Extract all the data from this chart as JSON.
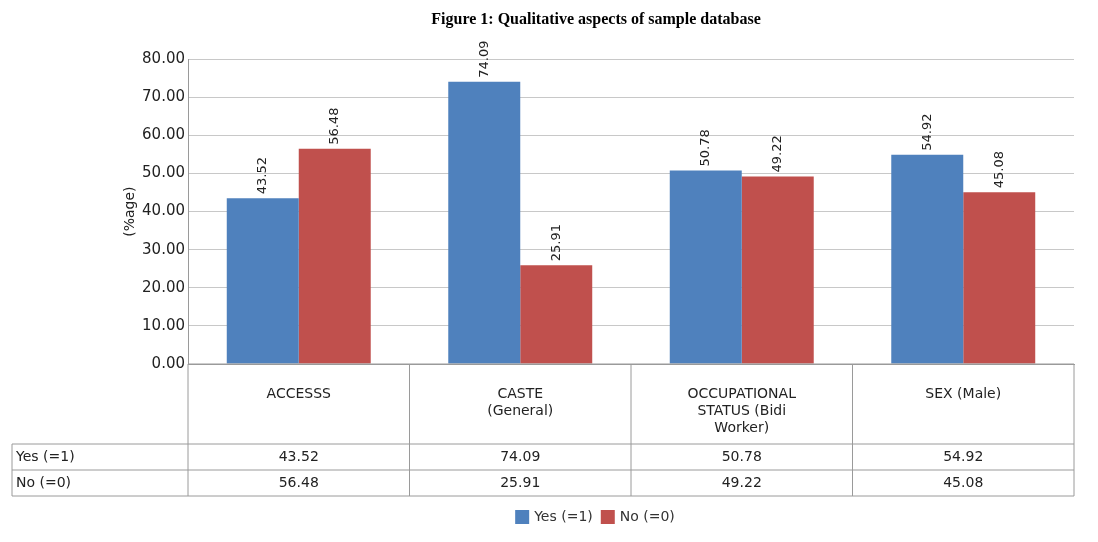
{
  "chart_data": {
    "type": "bar",
    "title": "Figure 1: Qualitative aspects of sample database",
    "ylabel": "(%age)",
    "categories": [
      "ACCESSS",
      "CASTE (General)",
      "OCCUPATIONAL STATUS (Bidi Worker)",
      "SEX (Male)"
    ],
    "series": [
      {
        "name": "Yes (=1)",
        "color": "#4f81bd",
        "values": [
          43.52,
          74.09,
          50.78,
          54.92
        ],
        "value_labels": [
          "43.52",
          "74.09",
          "50.78",
          "54.92"
        ]
      },
      {
        "name": "No (=0)",
        "color": "#c0504d",
        "values": [
          56.48,
          25.91,
          49.22,
          45.08
        ],
        "value_labels": [
          "56.48",
          "25.91",
          "49.22",
          "45.08"
        ]
      }
    ],
    "ylim": [
      0,
      80
    ],
    "yticks": [
      {
        "value": 0,
        "label": "0.00"
      },
      {
        "value": 10,
        "label": "10.00"
      },
      {
        "value": 20,
        "label": "20.00"
      },
      {
        "value": 30,
        "label": "30.00"
      },
      {
        "value": 40,
        "label": "40.00"
      },
      {
        "value": 50,
        "label": "50.00"
      },
      {
        "value": 60,
        "label": "60.00"
      },
      {
        "value": 70,
        "label": "70.00"
      },
      {
        "value": 80,
        "label": "80.00"
      }
    ],
    "annotations": [
      "43.52",
      "74.09",
      "50.78",
      "54.92",
      "56.48",
      "25.91",
      "49.22",
      "45.08"
    ],
    "grid": "y",
    "legend": "bottom"
  }
}
